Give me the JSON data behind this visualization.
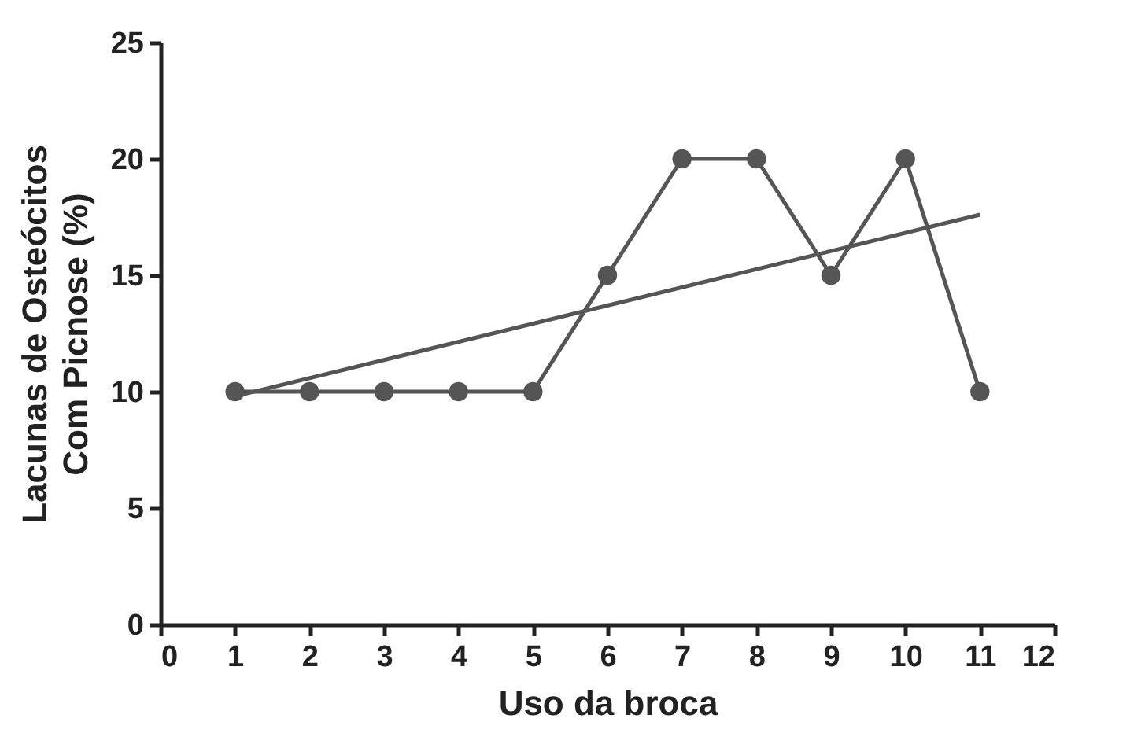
{
  "chart_data": {
    "type": "line",
    "xlabel": "Uso da broca",
    "ylabel": "Lacunas de Osteócitos\nCom Picnose (%)",
    "x": [
      1,
      2,
      3,
      4,
      5,
      6,
      7,
      8,
      9,
      10,
      11
    ],
    "series": [
      {
        "color": "#555555",
        "marker": "circle",
        "values": [
          10,
          10,
          10,
          10,
          10,
          15,
          20,
          20,
          15,
          20,
          10
        ]
      },
      {
        "type": "line",
        "color": "#555555",
        "marker": "none",
        "x": [
          1,
          11
        ],
        "values": [
          9.8,
          17.6
        ]
      }
    ],
    "xlim": [
      0,
      12
    ],
    "xticks": [
      0,
      1,
      2,
      3,
      4,
      5,
      6,
      7,
      8,
      9,
      10,
      11,
      12
    ],
    "ylim": [
      0,
      25
    ],
    "yticks": [
      0,
      5,
      10,
      15,
      20,
      25
    ],
    "grid": false,
    "legend": false
  }
}
